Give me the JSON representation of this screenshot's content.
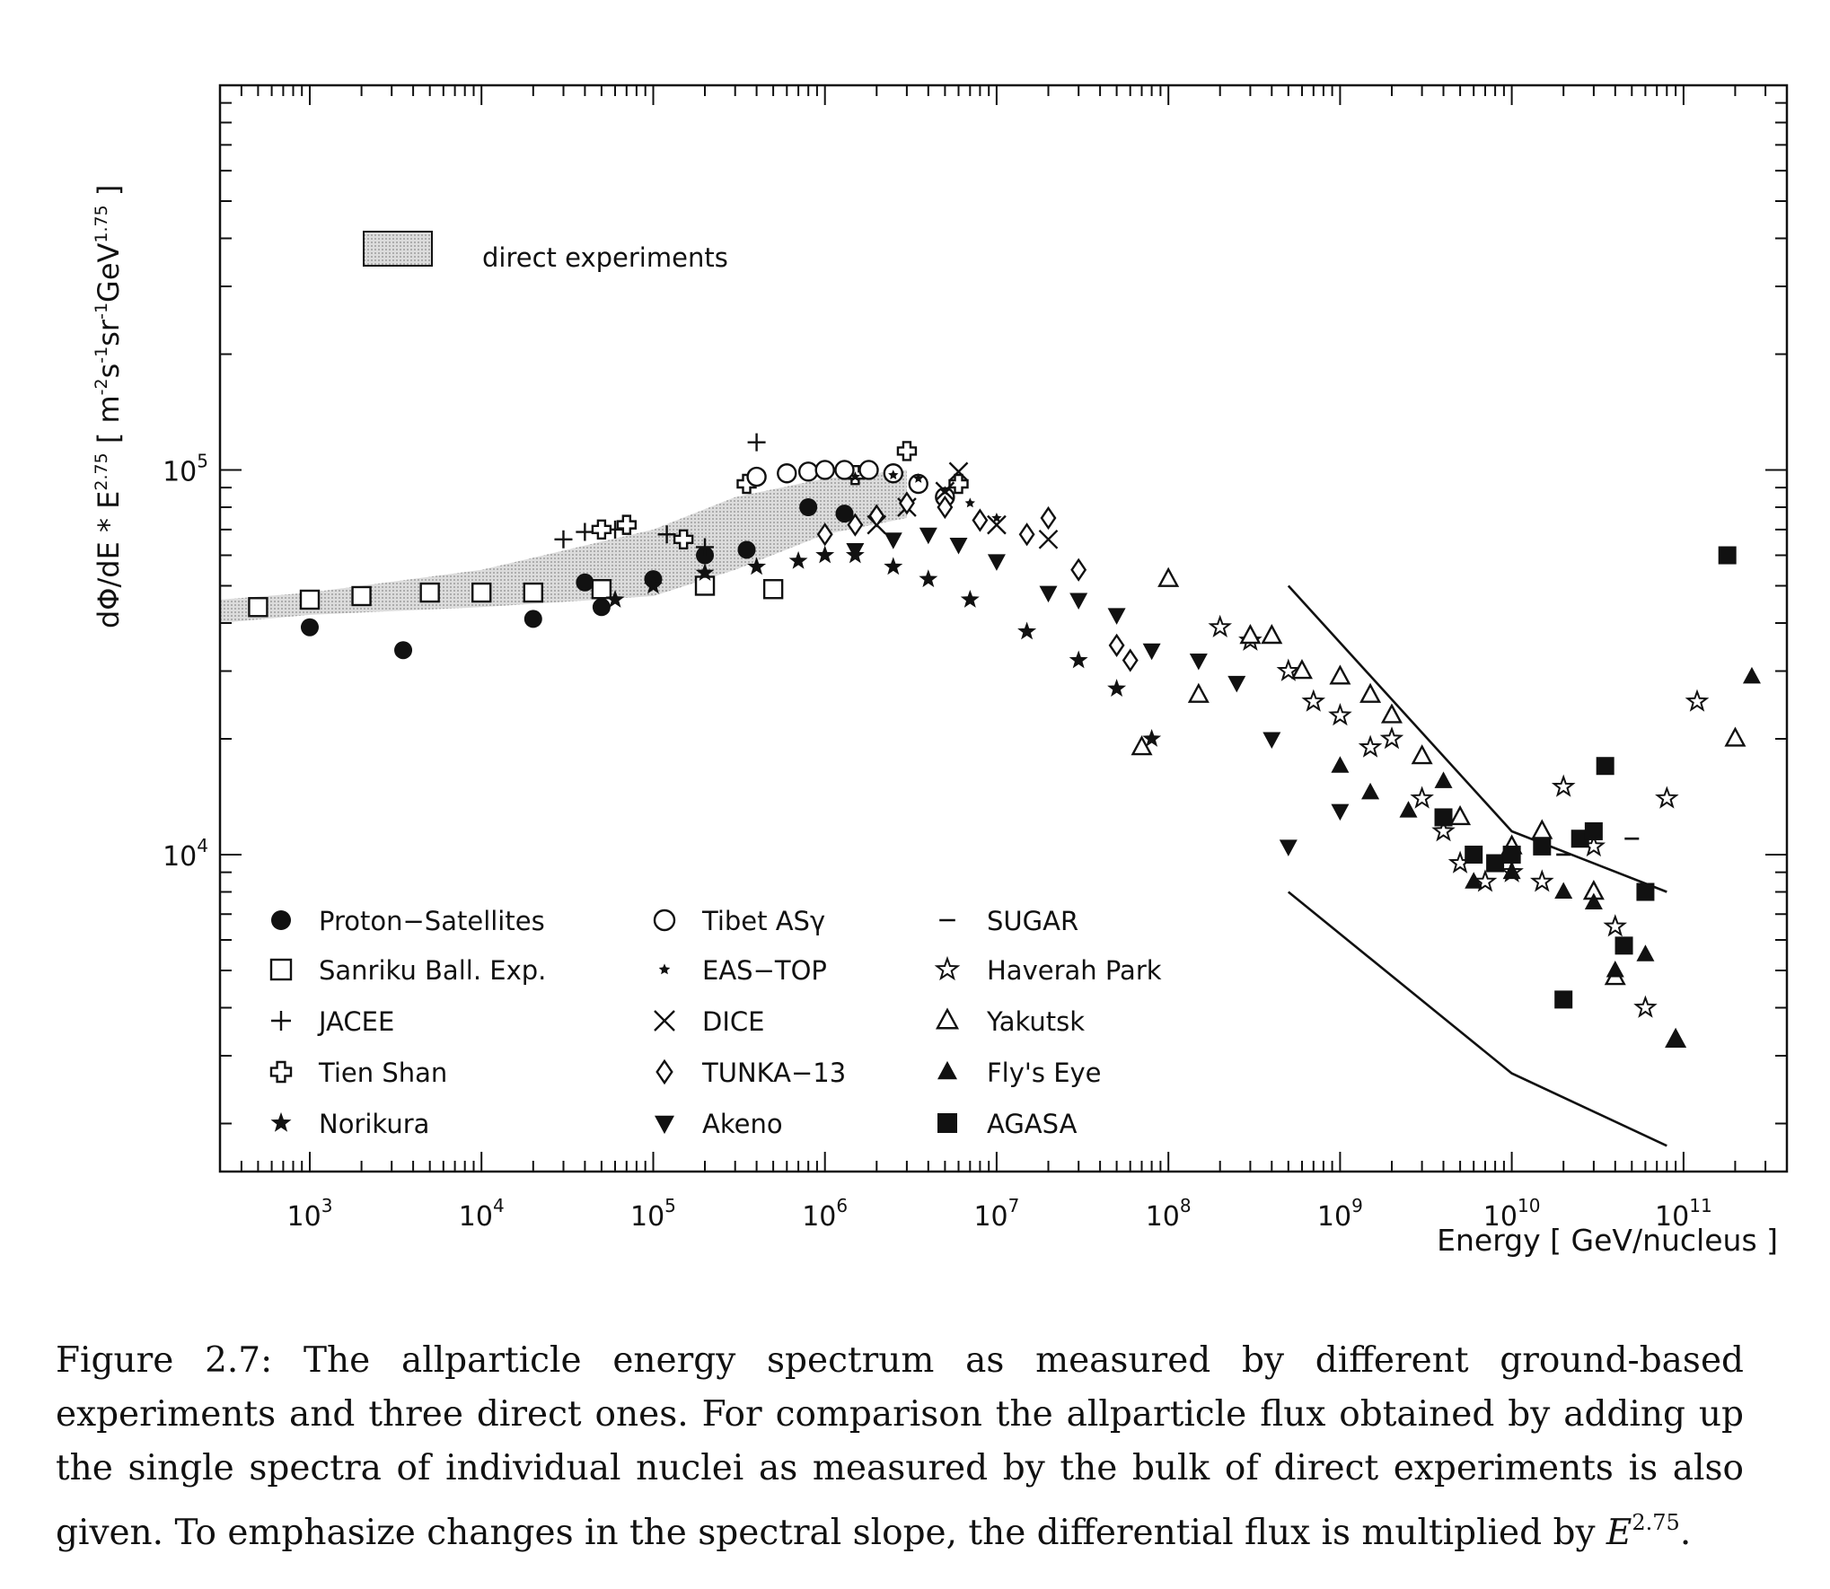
{
  "chart_data": {
    "type": "scatter",
    "title": "",
    "xlabel": "Energy [ GeV/nucleus ]",
    "ylabel": "dΦ/dE * E^2.75 [ m^-2 s^-1 sr^-1 GeV^1.75 ]",
    "ylabel_parts": {
      "main": "dΦ/dE * E",
      "exp1": "2.75",
      "units_open": " [ m",
      "exp2": "-2",
      "s": "s",
      "exp3": "-1",
      "sr": "sr",
      "exp4": "-1",
      "gev": "GeV",
      "exp5": "1.75",
      "units_close": " ]"
    },
    "x_scale": "log",
    "y_scale": "log",
    "xlim": [
      300,
      400000000000
    ],
    "ylim": [
      1500,
      1000000
    ],
    "x_ticks": [
      {
        "value": 1000,
        "base": "10",
        "exp": "3"
      },
      {
        "value": 10000,
        "base": "10",
        "exp": "4"
      },
      {
        "value": 100000,
        "base": "10",
        "exp": "5"
      },
      {
        "value": 1000000,
        "base": "10",
        "exp": "6"
      },
      {
        "value": 10000000,
        "base": "10",
        "exp": "7"
      },
      {
        "value": 100000000,
        "base": "10",
        "exp": "8"
      },
      {
        "value": 1000000000,
        "base": "10",
        "exp": "9"
      },
      {
        "value": 10000000000,
        "base": "10",
        "exp": "10"
      },
      {
        "value": 100000000000,
        "base": "10",
        "exp": "11"
      }
    ],
    "y_ticks": [
      {
        "value": 10000,
        "base": "10",
        "exp": "4"
      },
      {
        "value": 100000,
        "base": "10",
        "exp": "5"
      }
    ],
    "grid": false,
    "band": {
      "name": "direct experiments",
      "lower": [
        [
          300,
          40000
        ],
        [
          1000,
          42000
        ],
        [
          10000,
          44000
        ],
        [
          100000,
          47000
        ],
        [
          300000,
          55000
        ],
        [
          1000000,
          68000
        ],
        [
          3000000,
          75000
        ]
      ],
      "upper": [
        [
          300,
          46000
        ],
        [
          1000,
          48000
        ],
        [
          10000,
          55000
        ],
        [
          100000,
          70000
        ],
        [
          300000,
          85000
        ],
        [
          1000000,
          95000
        ],
        [
          3000000,
          100000
        ]
      ],
      "fill": "#cfcfcf"
    },
    "lines": [
      {
        "points": [
          [
            500000000,
            50000
          ],
          [
            10000000000,
            11500
          ],
          [
            80000000000,
            8000
          ]
        ]
      },
      {
        "points": [
          [
            500000000,
            8000
          ],
          [
            10000000000,
            2700
          ],
          [
            80000000000,
            1750
          ]
        ]
      }
    ],
    "legend_position": "bottom-left",
    "series": [
      {
        "name": "Proton−Satellites",
        "marker": "filled-circle",
        "points": [
          [
            1000,
            39000
          ],
          [
            3500,
            34000
          ],
          [
            20000,
            41000
          ],
          [
            40000,
            51000
          ],
          [
            50000,
            44000
          ],
          [
            100000,
            52000
          ],
          [
            200000,
            60000
          ],
          [
            350000,
            62000
          ],
          [
            800000,
            80000
          ],
          [
            1300000,
            77000
          ]
        ]
      },
      {
        "name": "Sanriku Ball. Exp.",
        "marker": "open-square",
        "points": [
          [
            500,
            44000
          ],
          [
            1000,
            46000
          ],
          [
            2000,
            47000
          ],
          [
            5000,
            48000
          ],
          [
            10000,
            48000
          ],
          [
            20000,
            48000
          ],
          [
            50000,
            49000
          ],
          [
            200000,
            50000
          ],
          [
            500000,
            49000
          ]
        ]
      },
      {
        "name": "JACEE",
        "marker": "plus",
        "points": [
          [
            30000,
            66000
          ],
          [
            40000,
            69000
          ],
          [
            60000,
            70000
          ],
          [
            120000,
            68000
          ],
          [
            200000,
            63000
          ],
          [
            400000,
            118000
          ]
        ]
      },
      {
        "name": "Tien Shan",
        "marker": "open-cross",
        "points": [
          [
            50000,
            70000
          ],
          [
            70000,
            72000
          ],
          [
            150000,
            66000
          ],
          [
            350000,
            92000
          ],
          [
            1500000,
            97000
          ],
          [
            3000000,
            112000
          ],
          [
            6000000,
            92000
          ]
        ]
      },
      {
        "name": "Norikura",
        "marker": "filled-star",
        "points": [
          [
            60000,
            46000
          ],
          [
            100000,
            50000
          ],
          [
            200000,
            54000
          ],
          [
            400000,
            56000
          ],
          [
            700000,
            58000
          ],
          [
            1000000,
            60000
          ],
          [
            1500000,
            60000
          ],
          [
            2500000,
            56000
          ],
          [
            4000000,
            52000
          ],
          [
            7000000,
            46000
          ],
          [
            15000000,
            38000
          ],
          [
            30000000,
            32000
          ],
          [
            50000000,
            27000
          ],
          [
            80000000,
            20000
          ]
        ]
      },
      {
        "name": "Tibet ASγ",
        "marker": "open-circle",
        "points": [
          [
            400000,
            96000
          ],
          [
            600000,
            98000
          ],
          [
            800000,
            99000
          ],
          [
            1000000,
            100000
          ],
          [
            1300000,
            100000
          ],
          [
            1800000,
            100000
          ],
          [
            2500000,
            98000
          ],
          [
            3500000,
            92000
          ],
          [
            5000000,
            85000
          ]
        ]
      },
      {
        "name": "EAS−TOP",
        "marker": "small-star",
        "points": [
          [
            1500000,
            96000
          ],
          [
            2500000,
            97000
          ],
          [
            3500000,
            95000
          ],
          [
            5000000,
            88000
          ],
          [
            7000000,
            82000
          ],
          [
            10000000,
            75000
          ]
        ]
      },
      {
        "name": "DICE",
        "marker": "x-cross",
        "points": [
          [
            2000000,
            72000
          ],
          [
            3000000,
            80000
          ],
          [
            5000000,
            88000
          ],
          [
            6000000,
            99000
          ],
          [
            10000000,
            72000
          ],
          [
            20000000,
            66000
          ]
        ]
      },
      {
        "name": "TUNKA−13",
        "marker": "open-diamond",
        "points": [
          [
            1000000,
            68000
          ],
          [
            1500000,
            72000
          ],
          [
            2000000,
            76000
          ],
          [
            3000000,
            82000
          ],
          [
            5000000,
            80000
          ],
          [
            8000000,
            74000
          ],
          [
            15000000,
            68000
          ],
          [
            20000000,
            75000
          ],
          [
            30000000,
            55000
          ],
          [
            50000000,
            35000
          ],
          [
            60000000,
            32000
          ]
        ]
      },
      {
        "name": "Akeno",
        "marker": "filled-triangle-down",
        "points": [
          [
            1500000,
            62000
          ],
          [
            2500000,
            66000
          ],
          [
            4000000,
            68000
          ],
          [
            6000000,
            64000
          ],
          [
            10000000,
            58000
          ],
          [
            20000000,
            48000
          ],
          [
            30000000,
            46000
          ],
          [
            50000000,
            42000
          ],
          [
            80000000,
            34000
          ],
          [
            150000000,
            32000
          ],
          [
            250000000,
            28000
          ],
          [
            400000000,
            20000
          ],
          [
            500000000,
            10500
          ],
          [
            1000000000,
            13000
          ]
        ]
      },
      {
        "name": "SUGAR",
        "marker": "dash",
        "points": [
          [
            20000000000,
            10000
          ],
          [
            30000000000,
            12000
          ],
          [
            50000000000,
            11000
          ]
        ]
      },
      {
        "name": "Haverah Park",
        "marker": "open-star",
        "points": [
          [
            200000000,
            39000
          ],
          [
            300000000,
            36000
          ],
          [
            500000000,
            30000
          ],
          [
            700000000,
            25000
          ],
          [
            1000000000,
            23000
          ],
          [
            1500000000,
            19000
          ],
          [
            2000000000,
            20000
          ],
          [
            3000000000,
            14000
          ],
          [
            4000000000,
            11500
          ],
          [
            5000000000,
            9500
          ],
          [
            7000000000,
            8500
          ],
          [
            10000000000,
            9000
          ],
          [
            15000000000,
            8500
          ],
          [
            20000000000,
            15000
          ],
          [
            30000000000,
            10500
          ],
          [
            40000000000,
            6500
          ],
          [
            60000000000,
            4000
          ],
          [
            80000000000,
            14000
          ],
          [
            120000000000,
            25000
          ]
        ]
      },
      {
        "name": "Yakutsk",
        "marker": "open-triangle",
        "points": [
          [
            70000000,
            19000
          ],
          [
            100000000,
            52000
          ],
          [
            150000000,
            26000
          ],
          [
            300000000,
            37000
          ],
          [
            400000000,
            37000
          ],
          [
            600000000,
            30000
          ],
          [
            1000000000,
            29000
          ],
          [
            1500000000,
            26000
          ],
          [
            2000000000,
            23000
          ],
          [
            3000000000,
            18000
          ],
          [
            5000000000,
            12500
          ],
          [
            10000000000,
            10500
          ],
          [
            15000000000,
            11500
          ],
          [
            30000000000,
            8000
          ],
          [
            40000000000,
            4800
          ],
          [
            90000000000,
            3300
          ],
          [
            200000000000,
            20000
          ]
        ]
      },
      {
        "name": "Fly's Eye",
        "marker": "filled-triangle",
        "points": [
          [
            1000000000,
            17000
          ],
          [
            1500000000,
            14500
          ],
          [
            2500000000,
            13000
          ],
          [
            4000000000,
            15500
          ],
          [
            6000000000,
            8500
          ],
          [
            10000000000,
            9000
          ],
          [
            20000000000,
            8000
          ],
          [
            30000000000,
            7500
          ],
          [
            40000000000,
            5000
          ],
          [
            60000000000,
            5500
          ],
          [
            90000000000,
            3300
          ],
          [
            250000000000,
            29000
          ]
        ]
      },
      {
        "name": "AGASA",
        "marker": "filled-square",
        "points": [
          [
            4000000000,
            12500
          ],
          [
            6000000000,
            10000
          ],
          [
            8000000000,
            9500
          ],
          [
            10000000000,
            10000
          ],
          [
            15000000000,
            10500
          ],
          [
            20000000000,
            4200
          ],
          [
            25000000000,
            11000
          ],
          [
            30000000000,
            11500
          ],
          [
            35000000000,
            17000
          ],
          [
            45000000000,
            5800
          ],
          [
            60000000000,
            8000
          ],
          [
            180000000000,
            60000
          ]
        ]
      }
    ],
    "legend_columns": [
      [
        "Proton−Satellites",
        "Sanriku Ball. Exp.",
        "JACEE",
        "Tien Shan",
        "Norikura"
      ],
      [
        "Tibet ASγ",
        "EAS−TOP",
        "DICE",
        "TUNKA−13",
        "Akeno"
      ],
      [
        "SUGAR",
        "Haverah Park",
        "Yakutsk",
        "Fly's Eye",
        "AGASA"
      ]
    ]
  },
  "caption": {
    "text": "Figure 2.7: The allparticle energy spectrum as measured by different ground-based experiments and three direct ones. For comparison the allparticle flux obtained by adding up the single spectra of individual nuclei as measured by the bulk of direct experiments is also given. To emphasize changes in the spectral slope, the differential flux is multiplied by ",
    "math_base": "E",
    "math_exp": "2.75",
    "tail": "."
  }
}
